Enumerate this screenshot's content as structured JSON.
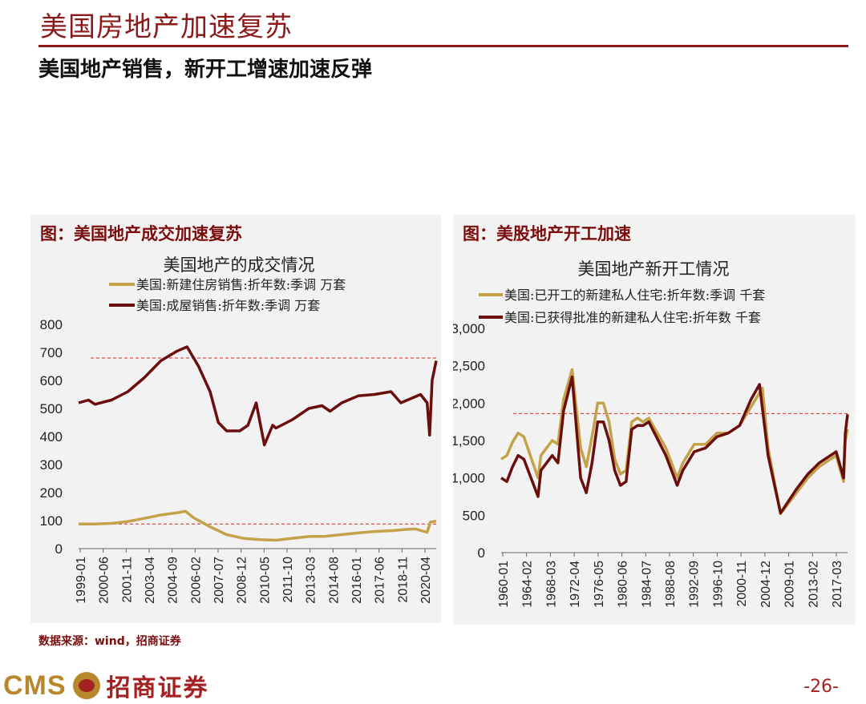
{
  "page": {
    "title": "美国房地产加速复苏",
    "subtitle": "美国地产销售，新开工增速加速反弹",
    "source": "数据来源：wind，招商证券",
    "page_number": "-26-",
    "logo_latin": "CMS",
    "logo_cn": "招商证券",
    "colors": {
      "accent": "#8b1a1a",
      "series_gold": "#c4a24a",
      "series_dark": "#6b0e0e",
      "ref_line": "#e02020"
    }
  },
  "panels": [
    {
      "caption": "图：美国地产成交加速复苏"
    },
    {
      "caption": "图：美股地产开工加速"
    }
  ],
  "chart_data": [
    {
      "type": "line",
      "title": "美国地产的成交情况",
      "ylim": [
        0,
        800
      ],
      "yticks": [
        "0",
        "100",
        "200",
        "300",
        "400",
        "500",
        "600",
        "700",
        "800"
      ],
      "xticks": [
        "1999-01",
        "2000-06",
        "2001-11",
        "2003-04",
        "2004-09",
        "2006-02",
        "2007-07",
        "2008-12",
        "2010-05",
        "2011-10",
        "2013-03",
        "2014-08",
        "2016-01",
        "2017-06",
        "2018-11",
        "2020-04"
      ],
      "x_start": 1999.0,
      "x_end": 2020.75,
      "reference_lines": [
        680,
        88
      ],
      "series": [
        {
          "name": "美国:新建住房销售:折年数:季调 万套",
          "color": "#c4a24a",
          "x": [
            1999.0,
            2000.0,
            2001.0,
            2002.0,
            2003.0,
            2004.0,
            2005.0,
            2005.5,
            2006.0,
            2007.0,
            2008.0,
            2009.0,
            2010.0,
            2011.0,
            2012.0,
            2013.0,
            2014.0,
            2015.0,
            2016.0,
            2017.0,
            2018.0,
            2019.0,
            2019.5,
            2020.2,
            2020.4,
            2020.75
          ],
          "values": [
            88,
            88,
            90,
            97,
            108,
            120,
            128,
            133,
            110,
            78,
            50,
            37,
            32,
            30,
            37,
            43,
            44,
            50,
            56,
            61,
            64,
            69,
            70,
            58,
            95,
            98
          ]
        },
        {
          "name": "美国:成屋销售:折年数:季调 万套",
          "color": "#6b0e0e",
          "x": [
            1999.0,
            1999.6,
            2000.0,
            2001.0,
            2002.0,
            2003.0,
            2004.0,
            2005.0,
            2005.6,
            2006.3,
            2007.0,
            2007.5,
            2008.0,
            2008.8,
            2009.3,
            2009.8,
            2010.3,
            2010.8,
            2011.0,
            2012.0,
            2013.0,
            2013.8,
            2014.3,
            2015.0,
            2016.0,
            2017.0,
            2018.0,
            2018.6,
            2019.0,
            2019.8,
            2020.2,
            2020.35,
            2020.5,
            2020.75
          ],
          "values": [
            520,
            530,
            515,
            530,
            560,
            610,
            670,
            705,
            720,
            650,
            560,
            450,
            420,
            420,
            440,
            520,
            370,
            440,
            430,
            460,
            500,
            510,
            490,
            520,
            545,
            550,
            560,
            520,
            530,
            550,
            520,
            405,
            600,
            670
          ]
        }
      ]
    },
    {
      "type": "line",
      "title": "美国地产新开工情况",
      "ylim": [
        0,
        3000
      ],
      "yticks": [
        "0",
        "500",
        "1,000",
        "1,500",
        "2,000",
        "2,500",
        "3,000"
      ],
      "xticks": [
        "1960-01",
        "1964-02",
        "1968-03",
        "1972-04",
        "1976-05",
        "1980-06",
        "1984-07",
        "1988-08",
        "1992-09",
        "1996-10",
        "2000-11",
        "2004-12",
        "2009-01",
        "2013-02",
        "2017-03"
      ],
      "x_start": 1960.0,
      "x_end": 2021.0,
      "reference_lines": [
        1860
      ],
      "series": [
        {
          "name": "美国:已开工的新建私人住宅:折年数:季调 千套",
          "color": "#c4a24a",
          "x": [
            1960.0,
            1961.0,
            1962.0,
            1963.0,
            1964.0,
            1966.5,
            1967.0,
            1969.0,
            1970.0,
            1971.0,
            1972.5,
            1974.0,
            1975.0,
            1976.0,
            1977.0,
            1978.0,
            1979.0,
            1980.0,
            1981.0,
            1982.0,
            1983.0,
            1984.0,
            1985.0,
            1986.0,
            1989.0,
            1991.0,
            1992.0,
            1994.0,
            1996.0,
            1998.0,
            2000.0,
            2002.0,
            2004.0,
            2006.0,
            2007.0,
            2009.2,
            2010.0,
            2012.0,
            2014.0,
            2016.0,
            2018.0,
            2019.0,
            2020.3,
            2020.6,
            2021.0
          ],
          "values": [
            1250,
            1300,
            1480,
            1600,
            1550,
            1000,
            1300,
            1500,
            1450,
            2050,
            2450,
            1400,
            1150,
            1550,
            2000,
            2000,
            1750,
            1250,
            1050,
            1100,
            1750,
            1800,
            1750,
            1800,
            1400,
            1000,
            1200,
            1450,
            1450,
            1600,
            1600,
            1700,
            1950,
            2200,
            1400,
            520,
            600,
            800,
            1000,
            1150,
            1250,
            1300,
            950,
            1500,
            1650
          ]
        },
        {
          "name": "美国:已获得批准的新建私人住宅:折年数 千套",
          "color": "#6b0e0e",
          "x": [
            1960.0,
            1961.0,
            1962.0,
            1963.0,
            1964.0,
            1966.5,
            1967.0,
            1969.0,
            1970.0,
            1971.0,
            1972.5,
            1974.0,
            1975.0,
            1976.0,
            1977.0,
            1978.0,
            1979.0,
            1980.0,
            1981.0,
            1982.0,
            1983.0,
            1984.0,
            1985.0,
            1986.0,
            1989.0,
            1991.0,
            1992.0,
            1994.0,
            1996.0,
            1998.0,
            2000.0,
            2002.0,
            2004.0,
            2005.5,
            2007.0,
            2009.2,
            2010.0,
            2012.0,
            2014.0,
            2016.0,
            2018.0,
            2019.0,
            2020.3,
            2020.6,
            2021.0
          ],
          "values": [
            1000,
            950,
            1150,
            1300,
            1250,
            750,
            1100,
            1300,
            1200,
            1900,
            2350,
            1000,
            800,
            1200,
            1750,
            1750,
            1500,
            1100,
            900,
            950,
            1650,
            1700,
            1700,
            1750,
            1300,
            900,
            1100,
            1350,
            1400,
            1550,
            1600,
            1700,
            2050,
            2250,
            1300,
            530,
            620,
            850,
            1050,
            1200,
            1300,
            1350,
            1000,
            1600,
            1850
          ]
        }
      ]
    }
  ]
}
